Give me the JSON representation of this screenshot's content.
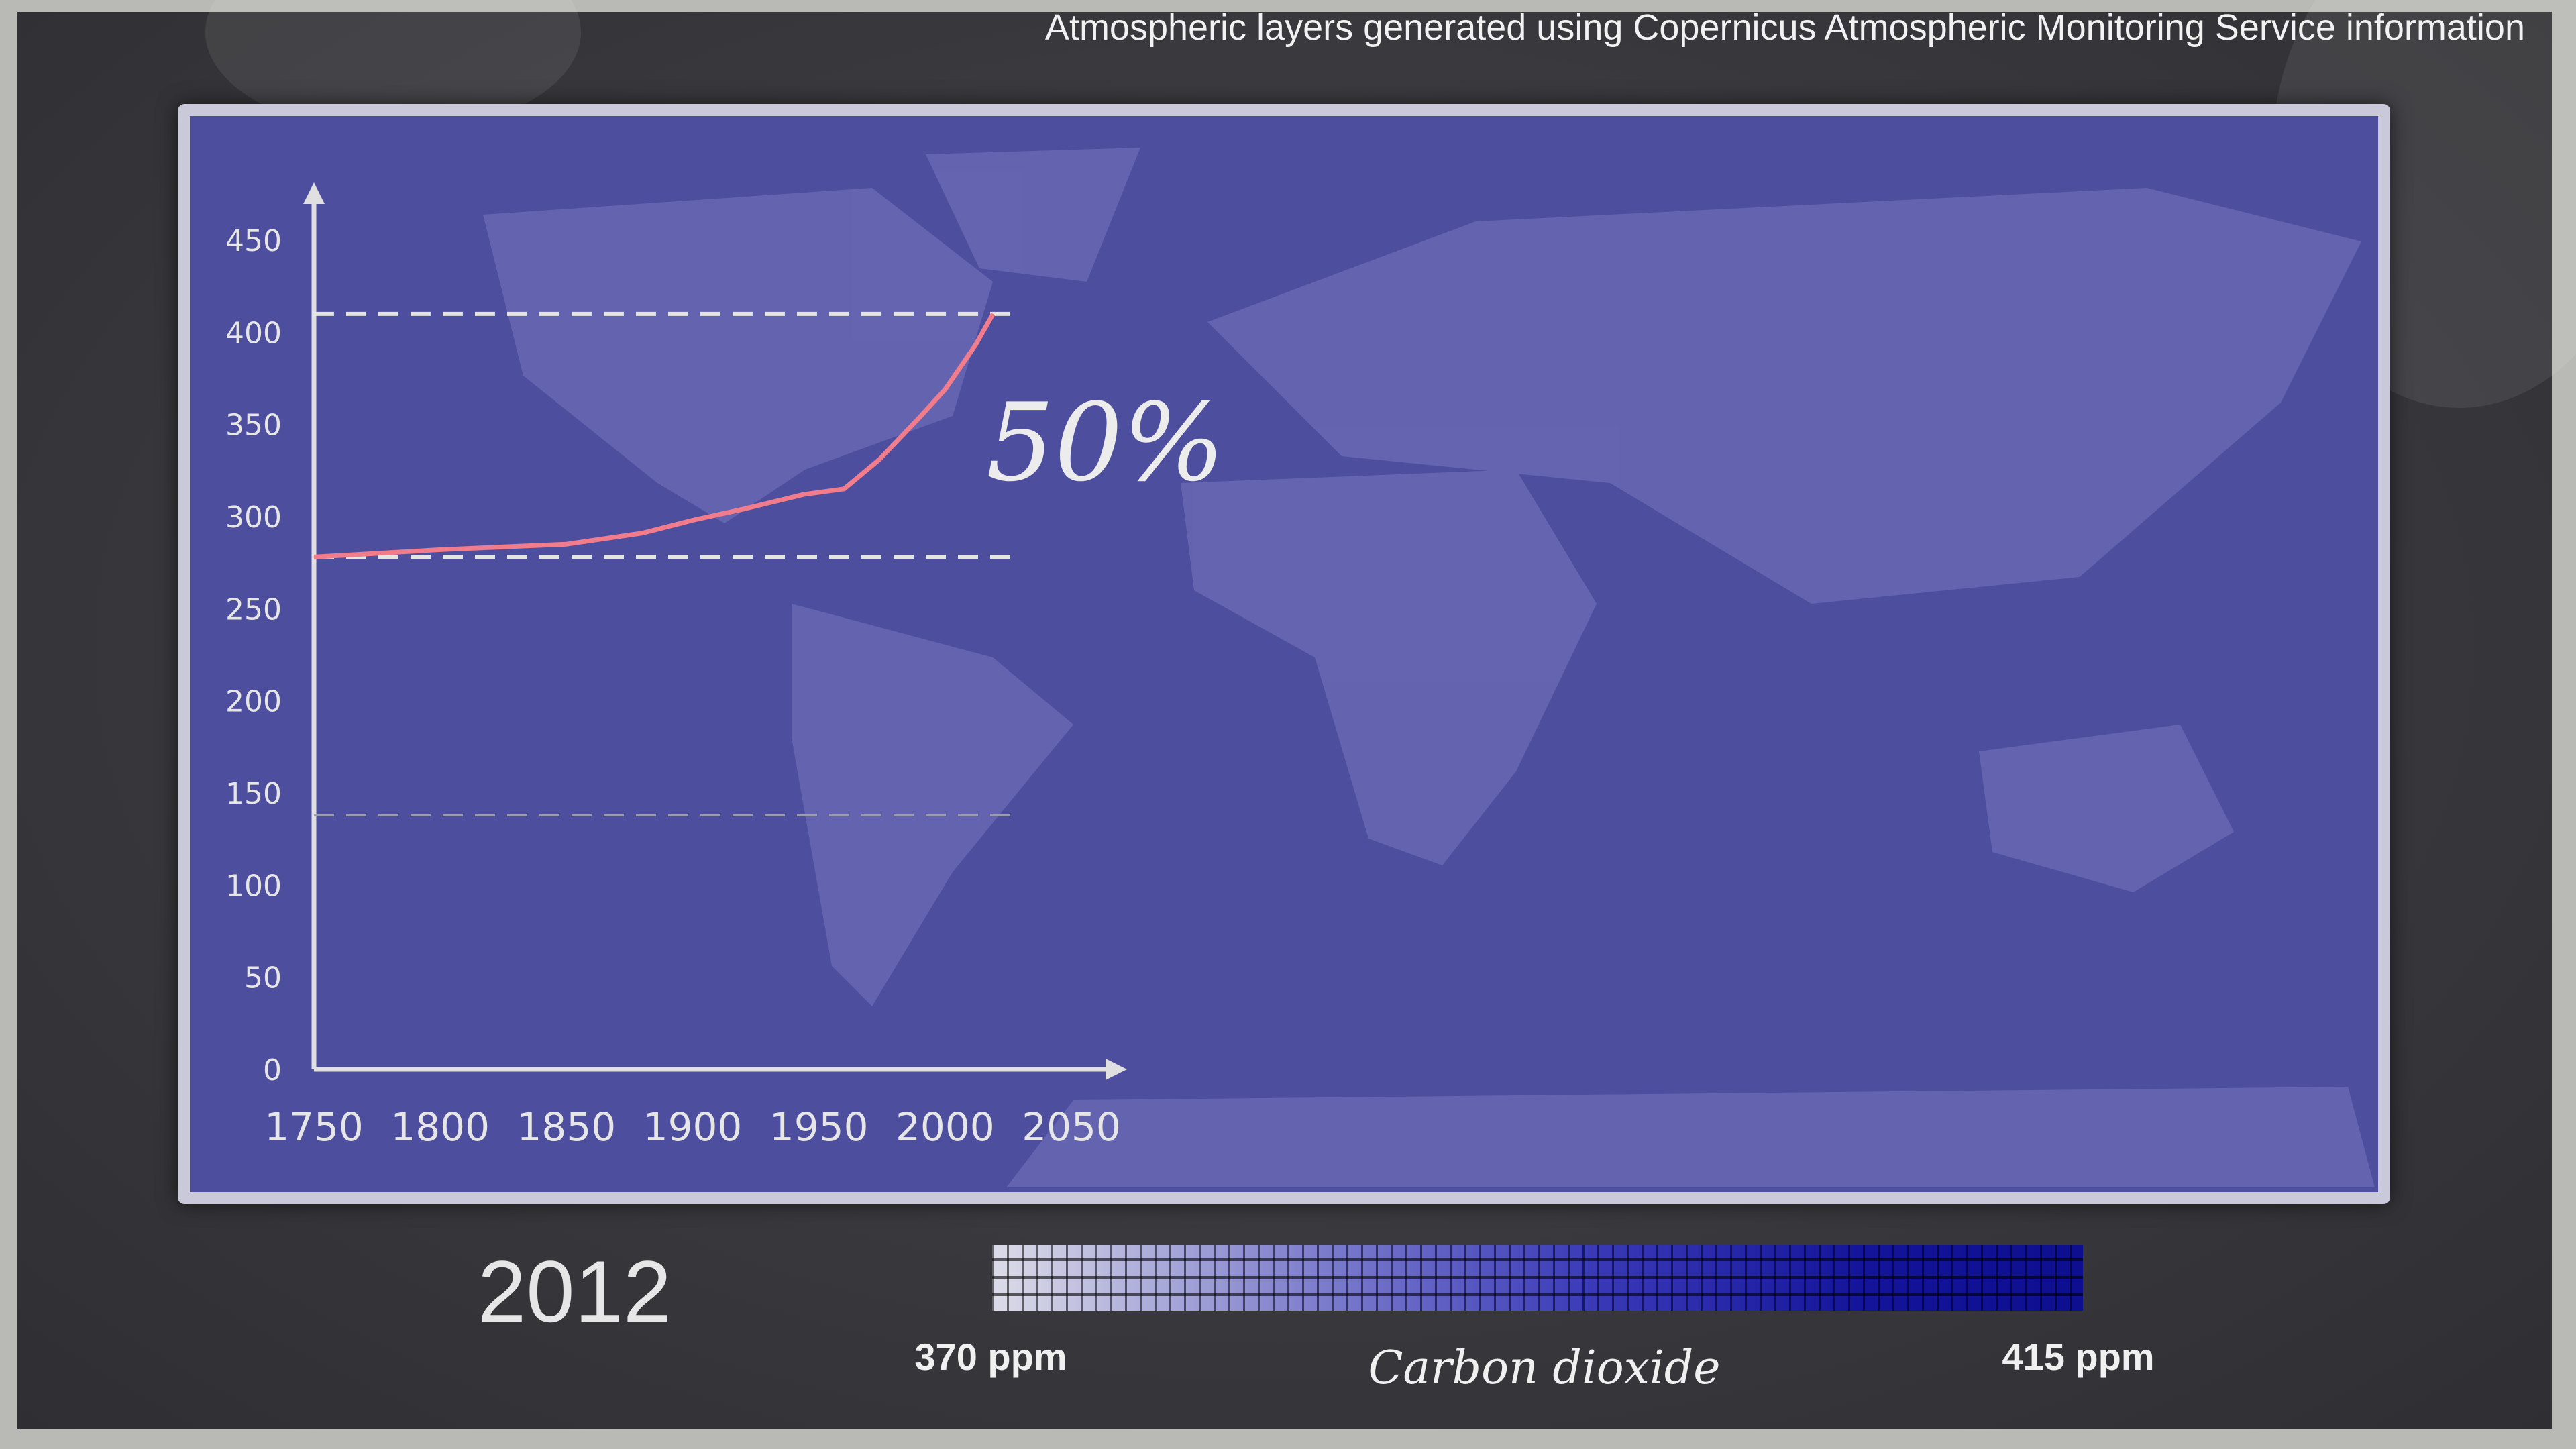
{
  "credit": "Atmospheric layers generated using Copernicus Atmospheric Monitoring Service information",
  "year": "2012",
  "colorbar": {
    "min_label": "370 ppm",
    "max_label": "415 ppm",
    "title": "Carbon dioxide",
    "colors": [
      "#dcdce8",
      "#0e0e90"
    ]
  },
  "colors": {
    "map": "#4e4e9f",
    "line": "#f07c8c",
    "axis": "#e0e0e0",
    "background": "#38383c"
  },
  "chart_data": {
    "type": "line",
    "x": [
      1750,
      1800,
      1850,
      1880,
      1900,
      1920,
      1944,
      1960,
      1974,
      1990,
      2000,
      2012,
      2019
    ],
    "series": [
      {
        "values": [
          278,
          282,
          285,
          291,
          298,
          304,
          312,
          315,
          331,
          354,
          369,
          393,
          410
        ]
      }
    ],
    "xlim": [
      1750,
      2050
    ],
    "ylim": [
      0,
      450
    ],
    "xticks": [
      "1750",
      "1800",
      "1850",
      "1900",
      "1950",
      "2000",
      "2050"
    ],
    "yticks": [
      "0",
      "50",
      "100",
      "150",
      "200",
      "250",
      "300",
      "350",
      "400",
      "450"
    ],
    "reference_lines": [
      410,
      278,
      138
    ],
    "annotation": "50%",
    "grid": false
  }
}
